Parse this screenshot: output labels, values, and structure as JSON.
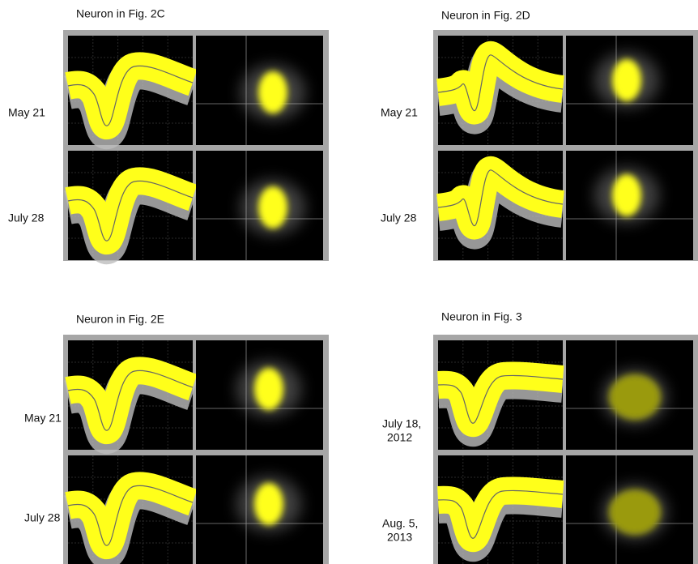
{
  "panels": [
    {
      "title": "Neuron in Fig. 2C",
      "rows": [
        {
          "label": [
            "May 21"
          ]
        },
        {
          "label": [
            "July 28"
          ]
        }
      ]
    },
    {
      "title": "Neuron in Fig. 2D",
      "rows": [
        {
          "label": [
            "May 21"
          ]
        },
        {
          "label": [
            "July 28"
          ]
        }
      ]
    },
    {
      "title": "Neuron in Fig. 2E",
      "rows": [
        {
          "label": [
            "May 21"
          ]
        },
        {
          "label": [
            "July 28"
          ]
        }
      ]
    },
    {
      "title": "Neuron in Fig. 3",
      "rows": [
        {
          "label": [
            "July 18,",
            "2012"
          ]
        },
        {
          "label": [
            "Aug. 5,",
            "2013"
          ]
        }
      ]
    }
  ]
}
